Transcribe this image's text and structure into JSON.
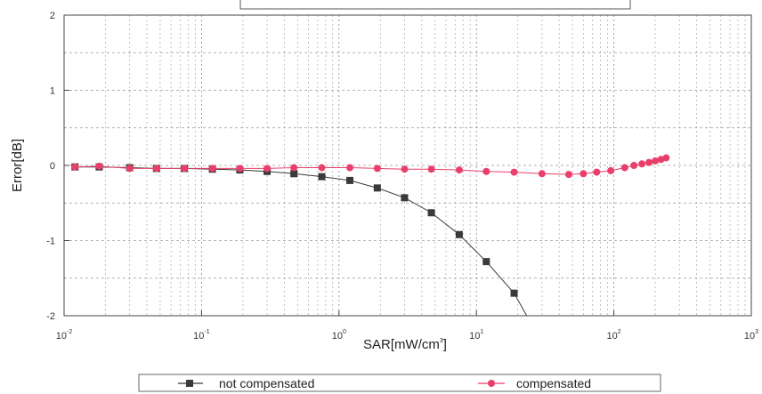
{
  "chart_data": {
    "type": "line",
    "title": "",
    "xlabel": "SAR[mW/cm",
    "xlabel_sup": "3",
    "xlabel_end": "]",
    "ylabel": "Error[dB]",
    "x_scale": "log",
    "xlim": [
      0.01,
      1000
    ],
    "ylim": [
      -2,
      2
    ],
    "x_ticks": [
      {
        "value": 0.01,
        "base": "10",
        "exp": "-2"
      },
      {
        "value": 0.1,
        "base": "10",
        "exp": "-1"
      },
      {
        "value": 1,
        "base": "10",
        "exp": "0"
      },
      {
        "value": 10,
        "base": "10",
        "exp": "1"
      },
      {
        "value": 100,
        "base": "10",
        "exp": "2"
      },
      {
        "value": 1000,
        "base": "10",
        "exp": "3"
      }
    ],
    "y_ticks": [
      {
        "value": -2,
        "label": "-2"
      },
      {
        "value": -1,
        "label": "-1"
      },
      {
        "value": 0,
        "label": "0"
      },
      {
        "value": 1,
        "label": "1"
      },
      {
        "value": 2,
        "label": "2"
      }
    ],
    "grid": true,
    "legend_position": "bottom",
    "series": [
      {
        "name": "not compensated",
        "color": "#3a3a3a",
        "marker": "square",
        "x": [
          0.012,
          0.018,
          0.03,
          0.047,
          0.075,
          0.12,
          0.19,
          0.3,
          0.47,
          0.75,
          1.2,
          1.9,
          3.0,
          4.7,
          7.5,
          11.8,
          18.8
        ],
        "y": [
          -0.02,
          -0.02,
          -0.03,
          -0.04,
          -0.04,
          -0.05,
          -0.06,
          -0.08,
          -0.11,
          -0.15,
          -0.2,
          -0.3,
          -0.43,
          -0.63,
          -0.92,
          -1.28,
          -1.7
        ]
      },
      {
        "name": "compensated",
        "color": "#ea3f6b",
        "marker": "circle",
        "x": [
          0.012,
          0.018,
          0.03,
          0.047,
          0.075,
          0.12,
          0.19,
          0.3,
          0.47,
          0.75,
          1.2,
          1.9,
          3.0,
          4.7,
          7.5,
          11.8,
          18.8,
          30,
          47,
          60,
          75,
          95,
          120,
          140,
          160,
          180,
          200,
          220,
          240
        ],
        "y": [
          -0.02,
          -0.01,
          -0.04,
          -0.04,
          -0.04,
          -0.04,
          -0.04,
          -0.04,
          -0.03,
          -0.03,
          -0.03,
          -0.04,
          -0.05,
          -0.05,
          -0.06,
          -0.08,
          -0.09,
          -0.11,
          -0.12,
          -0.11,
          -0.09,
          -0.07,
          -0.03,
          0.0,
          0.02,
          0.04,
          0.06,
          0.08,
          0.1
        ]
      }
    ]
  }
}
